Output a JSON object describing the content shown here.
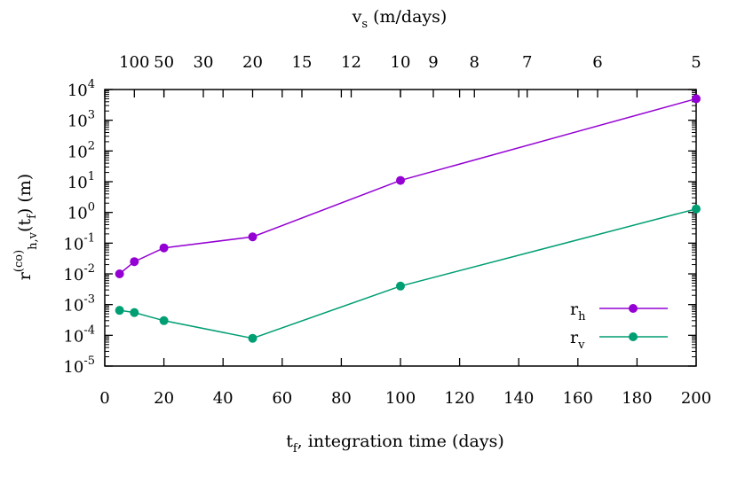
{
  "chart_data": {
    "type": "line",
    "title": "",
    "xlabel": {
      "main": "t",
      "sub": "f",
      "rest": ", integration time  (days)"
    },
    "x2label": {
      "main": "v",
      "sub": "s",
      "rest": "  (m/days)"
    },
    "ylabel": {
      "main": "r",
      "sup": "(co)",
      "sub": "h,v",
      "rest": "(t",
      "sub2": "f",
      "rest2": ")  (m)"
    },
    "xlim": [
      0,
      200
    ],
    "ylim_log10": [
      -5,
      4
    ],
    "yscale": "log",
    "grid": false,
    "legend_position": "bottom-right",
    "x_ticks": [
      "0",
      "20",
      "40",
      "60",
      "80",
      "100",
      "120",
      "140",
      "160",
      "180",
      "200"
    ],
    "y_ticks": [
      {
        "base": "10",
        "exp": "4"
      },
      {
        "base": "10",
        "exp": "3"
      },
      {
        "base": "10",
        "exp": "2"
      },
      {
        "base": "10",
        "exp": "1"
      },
      {
        "base": "10",
        "exp": "0"
      },
      {
        "base": "10",
        "exp": "-1"
      },
      {
        "base": "10",
        "exp": "-2"
      },
      {
        "base": "10",
        "exp": "-3"
      },
      {
        "base": "10",
        "exp": "-4"
      },
      {
        "base": "10",
        "exp": "-5"
      }
    ],
    "x2_ticks": [
      "100",
      "50",
      "30",
      "20",
      "15",
      "12",
      "10",
      "9",
      "8",
      "7",
      "6",
      "5"
    ],
    "series": [
      {
        "name": "r",
        "name_sub": "h",
        "color": "#9400d3",
        "x": [
          5,
          10,
          20,
          50,
          100,
          200
        ],
        "y": [
          0.01,
          0.025,
          0.07,
          0.16,
          11,
          5000
        ]
      },
      {
        "name": "r",
        "name_sub": "v",
        "color": "#009e73",
        "x": [
          5,
          10,
          20,
          50,
          100,
          200
        ],
        "y": [
          0.00065,
          0.00055,
          0.0003,
          8e-05,
          0.004,
          1.3
        ]
      }
    ]
  }
}
